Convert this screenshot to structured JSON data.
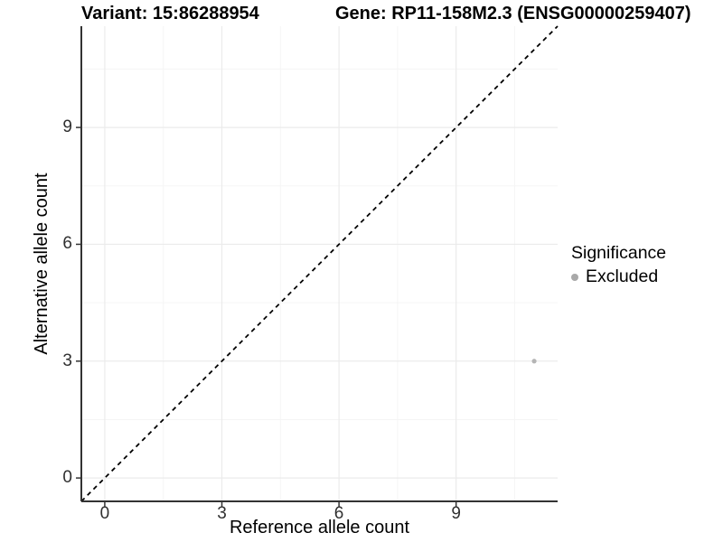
{
  "header": {
    "variant_title": "Variant: 15:86288954",
    "gene_title": "Gene: RP11-158M2.3 (ENSG00000259407)"
  },
  "chart_data": {
    "type": "scatter",
    "xlabel": "Reference allele count",
    "ylabel": "Alternative allele count",
    "xlim": [
      -0.6,
      11.6
    ],
    "ylim": [
      -0.6,
      11.6
    ],
    "x_ticks": [
      0,
      3,
      6,
      9
    ],
    "y_ticks": [
      0,
      3,
      6,
      9
    ],
    "x_minor_ticks": [
      1.5,
      4.5,
      7.5,
      10.5
    ],
    "y_minor_ticks": [
      1.5,
      4.5,
      7.5,
      10.5
    ],
    "grid": "major+minor",
    "identity_line": {
      "style": "dashed",
      "from": [
        -0.6,
        -0.6
      ],
      "to": [
        11.6,
        11.6
      ]
    },
    "series": [
      {
        "name": "Excluded",
        "color": "#b5b5b5",
        "points": [
          {
            "x": 11,
            "y": 3
          }
        ]
      }
    ],
    "legend": {
      "title": "Significance",
      "position": "right",
      "items": [
        {
          "label": "Excluded",
          "color": "#a9a9a9"
        }
      ]
    }
  },
  "colors": {
    "background": "#ffffff",
    "axis_line": "#333333",
    "tick_mark": "#333333",
    "tick_text": "#303030",
    "grid_major": "#ebebeb",
    "grid_minor": "#f5f5f5",
    "identity_line": "#000000"
  }
}
